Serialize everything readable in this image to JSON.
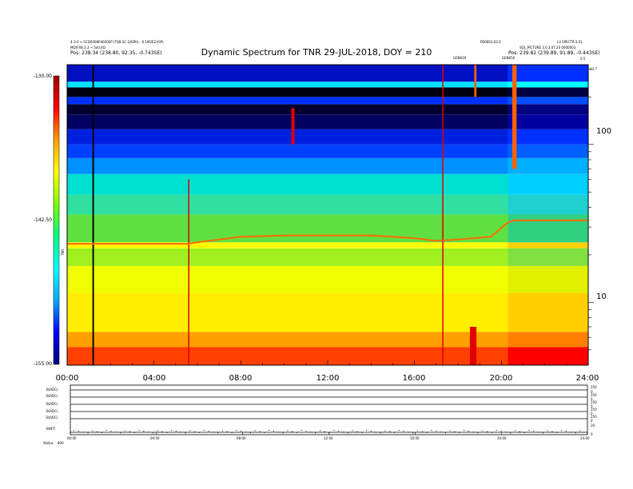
{
  "chart_data": {
    "type": "heatmap",
    "title": "Dynamic Spectrum for TNR 29-JUL-2018, DOY = 210",
    "header_left": [
      "4-3-0 + SCQ0008P4000SP (TQ8 SC Q(SPH) - 0.1M2E2)(SP)",
      "MQ(FR8.3.3 ~ 5x0.0Q",
      "Pos: 238.34 (238.80, 92.35, -0.743SE)"
    ],
    "header_right": [
      "PR0603.62.0",
      "L3 SPECTR.3.01",
      "SQL_PICTURE 3.0.3.07.20 0000003",
      "Pos: 239.82 (239.89, 91.89, -0.443SE)"
    ],
    "right_corner_labels": [
      "0.5",
      "10.7"
    ],
    "mid_markers": [
      "GEN030",
      "GEN050"
    ],
    "x_tick_labels": [
      "00:00",
      "04:00",
      "08:00",
      "12:00",
      "16:00",
      "20:00",
      "24:00"
    ],
    "x_range_hours": [
      0,
      24
    ],
    "y_right_tick_labels": [
      "100",
      "10"
    ],
    "y_right_range": [
      4,
      320
    ],
    "y_right_scale": "log",
    "colorbar": {
      "tick_labels": [
        "-130.00",
        "-142.50",
        "-155.00"
      ],
      "range": [
        -155.0,
        -130.0
      ],
      "label": "TNR",
      "colors": [
        "#000080",
        "#0000ff",
        "#00aaff",
        "#00ffff",
        "#00ff80",
        "#80ff00",
        "#ffff00",
        "#ffa000",
        "#ff0000",
        "#a00000"
      ]
    },
    "spectrum_bands": [
      {
        "freq_from": 4,
        "freq_to": 5.2,
        "color": "#ff4000",
        "color_hi": "#ff0000"
      },
      {
        "freq_from": 5.2,
        "freq_to": 6.5,
        "color": "#ffa000",
        "color_hi": "#ff8000"
      },
      {
        "freq_from": 6.5,
        "freq_to": 11.5,
        "color": "#ffee00",
        "color_hi": "#ffd000"
      },
      {
        "freq_from": 11.5,
        "freq_to": 17,
        "color": "#f0ff00",
        "color_hi": "#e0f000"
      },
      {
        "freq_from": 17,
        "freq_to": 22,
        "color": "#a0f020",
        "color_hi": "#80e040"
      },
      {
        "freq_from": 22,
        "freq_to": 24,
        "color": "#ffff00",
        "color_hi": "#ffd000"
      },
      {
        "freq_from": 24,
        "freq_to": 36,
        "color": "#60e040",
        "color_hi": "#30d080"
      },
      {
        "freq_from": 36,
        "freq_to": 48,
        "color": "#30e0a0",
        "color_hi": "#20d0d0"
      },
      {
        "freq_from": 48,
        "freq_to": 65,
        "color": "#00e0d0",
        "color_hi": "#00d0ff"
      },
      {
        "freq_from": 65,
        "freq_to": 82,
        "color": "#0090ff",
        "color_hi": "#00b0ff"
      },
      {
        "freq_from": 82,
        "freq_to": 100,
        "color": "#0040ff",
        "color_hi": "#0060ff"
      },
      {
        "freq_from": 100,
        "freq_to": 125,
        "color": "#0020e0",
        "color_hi": "#0030ff"
      },
      {
        "freq_from": 125,
        "freq_to": 155,
        "color": "#000060",
        "color_hi": "#0000a0"
      },
      {
        "freq_from": 155,
        "freq_to": 180,
        "color": "#000030",
        "color_hi": "#000080"
      },
      {
        "freq_from": 180,
        "freq_to": 200,
        "color": "#0030ff",
        "color_hi": "#0050ff"
      },
      {
        "freq_from": 200,
        "freq_to": 230,
        "color": "#000010",
        "color_hi": "#000040"
      },
      {
        "freq_from": 230,
        "freq_to": 250,
        "color": "#00e0ff",
        "color_hi": "#00ffff"
      },
      {
        "freq_from": 250,
        "freq_to": 320,
        "color": "#0010c0",
        "color_hi": "#0030ff"
      }
    ],
    "spectrum_change_hour": 20.3,
    "orange_ridge": [
      {
        "hour": 0.0,
        "freq": 23.5
      },
      {
        "hour": 5.5,
        "freq": 23.5
      },
      {
        "hour": 6.5,
        "freq": 24.5
      },
      {
        "hour": 8.0,
        "freq": 26.0
      },
      {
        "hour": 10.0,
        "freq": 26.5
      },
      {
        "hour": 14.0,
        "freq": 26.5
      },
      {
        "hour": 16.0,
        "freq": 25.5
      },
      {
        "hour": 17.0,
        "freq": 24.5
      },
      {
        "hour": 18.0,
        "freq": 25.0
      },
      {
        "hour": 19.5,
        "freq": 26.0
      },
      {
        "hour": 20.3,
        "freq": 32.0
      },
      {
        "hour": 20.6,
        "freq": 33.0
      },
      {
        "hour": 24.0,
        "freq": 33.0
      }
    ],
    "vertical_bursts": [
      {
        "hour": 1.2,
        "freq_low": 4,
        "freq_high": 320,
        "color": "#000000",
        "width_h": 0.07
      },
      {
        "hour": 5.6,
        "freq_low": 4,
        "freq_high": 60,
        "color": "#e00000",
        "width_h": 0.05
      },
      {
        "hour": 17.3,
        "freq_low": 4,
        "freq_high": 320,
        "color": "#e00000",
        "width_h": 0.05
      },
      {
        "hour": 10.4,
        "freq_low": 100,
        "freq_high": 170,
        "color": "#e00000",
        "width_h": 0.15
      },
      {
        "hour": 20.6,
        "freq_low": 70,
        "freq_high": 320,
        "color": "#ff6000",
        "width_h": 0.2
      },
      {
        "hour": 18.7,
        "freq_low": 4,
        "freq_high": 7,
        "color": "#e00000",
        "width_h": 0.3
      },
      {
        "hour": 18.8,
        "freq_low": 200,
        "freq_high": 320,
        "color": "#ff6000",
        "width_h": 0.1
      }
    ],
    "lower_panels": {
      "x_tick_labels": [
        "00:00",
        "04:00",
        "08:00",
        "12:00",
        "16:00",
        "20:00",
        "24:00"
      ],
      "rows": [
        {
          "label": "B(ADC)",
          "right_ticks": [
            "250",
            "0"
          ]
        },
        {
          "label": "B(ADC)",
          "right_ticks": [
            "250",
            "0"
          ]
        },
        {
          "label": "B(ADC)",
          "right_ticks": [
            "250",
            "0"
          ]
        },
        {
          "label": "B(ADC)",
          "right_ticks": [
            "250",
            "0"
          ]
        },
        {
          "label": "B(ADC)",
          "right_ticks": [
            "250",
            "0"
          ]
        },
        {
          "label": "B(NT)",
          "right_ticks": [
            "20",
            "0"
          ]
        }
      ],
      "status_label": "Status",
      "status_value": "800"
    }
  }
}
